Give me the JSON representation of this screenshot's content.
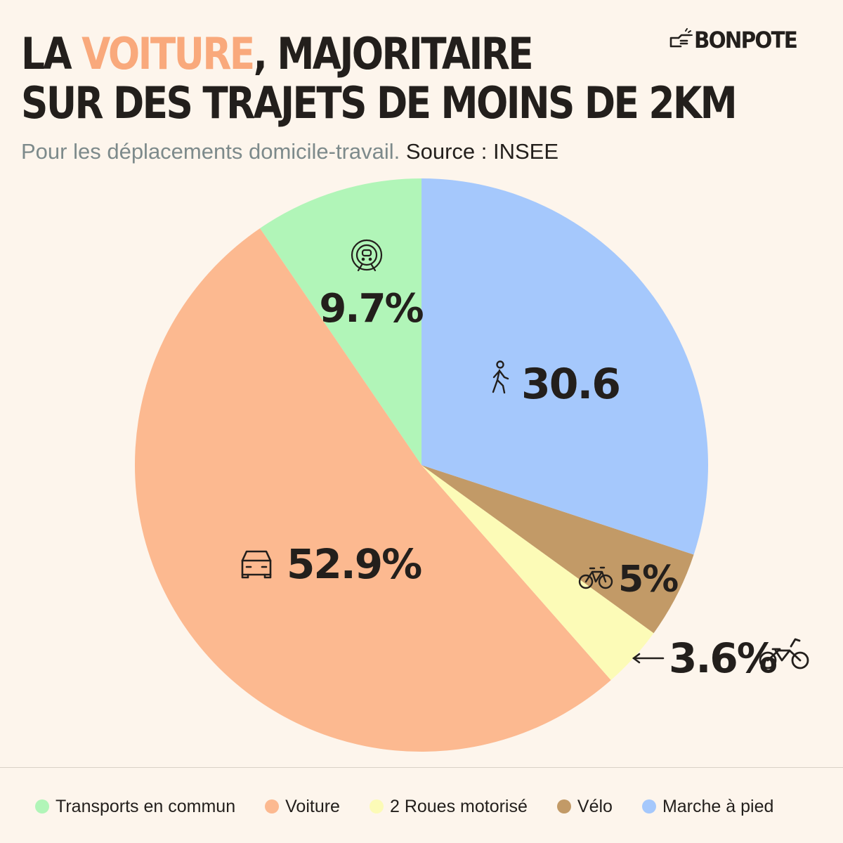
{
  "header": {
    "title_part1": "La ",
    "title_highlight": "voiture",
    "title_part2": ", majoritaire",
    "title_line2": "sur des trajets de moins de 2km",
    "subtitle": "Pour les déplacements domicile-travail.",
    "source": "Source : INSEE",
    "logo": "BONPOTE",
    "highlight_color": "#f9a97c"
  },
  "chart_data": {
    "type": "pie",
    "title": "La voiture, majoritaire sur des trajets de moins de 2km",
    "start_angle_deg": 0,
    "direction": "counterclockwise-from-top",
    "slices": [
      {
        "name": "Transports en commun",
        "value": 9.7,
        "label": "9.7%",
        "color": "#b1f5b8",
        "icon": "train-icon"
      },
      {
        "name": "Voiture",
        "value": 52.9,
        "label": "52.9%",
        "color": "#fcb990",
        "icon": "car-icon"
      },
      {
        "name": "2 Roues motorisé",
        "value": 3.6,
        "label": "3.6%",
        "color": "#fcfbb7",
        "icon": "motorbike-icon"
      },
      {
        "name": "Vélo",
        "value": 5,
        "label": "5%",
        "color": "#c29a67",
        "icon": "bicycle-icon"
      },
      {
        "name": "Marche à pied",
        "value": 30.6,
        "label": "30.6",
        "color": "#a5c8fc",
        "icon": "walking-person-icon"
      }
    ]
  },
  "legend": {
    "items": [
      {
        "label": "Transports en commun",
        "color": "#b1f5b8"
      },
      {
        "label": "Voiture",
        "color": "#fcb990"
      },
      {
        "label": "2 Roues motorisé",
        "color": "#fcfbb7"
      },
      {
        "label": "Vélo",
        "color": "#c29a67"
      },
      {
        "label": "Marche à pied",
        "color": "#a5c8fc"
      }
    ]
  }
}
